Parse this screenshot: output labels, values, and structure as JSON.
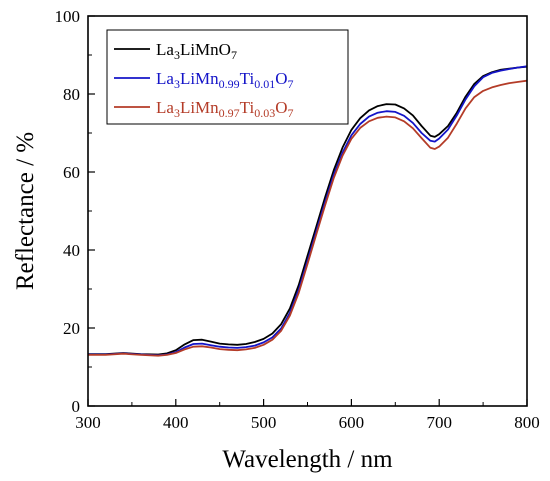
{
  "chart_data": {
    "type": "line",
    "title": "",
    "xlabel": "Wavelength / nm",
    "ylabel": "Reflectance / %",
    "xlim": [
      300,
      800
    ],
    "ylim": [
      0,
      100
    ],
    "x_ticks": [
      300,
      400,
      500,
      600,
      700,
      800
    ],
    "y_ticks": [
      0,
      20,
      40,
      60,
      80,
      100
    ],
    "grid": false,
    "legend_position": "top-left",
    "series": [
      {
        "name": "La3LiMnO7",
        "name_parts": [
          [
            "La",
            ""
          ],
          [
            "3",
            "sub"
          ],
          [
            "LiMnO",
            ""
          ],
          [
            "7",
            "sub"
          ]
        ],
        "color": "#000000",
        "x": [
          300,
          320,
          340,
          360,
          380,
          390,
          400,
          410,
          420,
          430,
          440,
          450,
          460,
          470,
          480,
          490,
          500,
          510,
          520,
          530,
          540,
          550,
          560,
          570,
          580,
          590,
          600,
          610,
          620,
          630,
          640,
          650,
          660,
          670,
          680,
          690,
          695,
          700,
          710,
          720,
          730,
          740,
          750,
          760,
          770,
          780,
          790,
          800
        ],
        "y": [
          13.3,
          13.3,
          13.6,
          13.3,
          13.2,
          13.5,
          14.3,
          15.8,
          16.9,
          17.0,
          16.5,
          16.0,
          15.8,
          15.7,
          15.9,
          16.4,
          17.2,
          18.6,
          21.0,
          25.0,
          31.0,
          38.5,
          46.0,
          53.5,
          60.5,
          66.3,
          70.8,
          73.8,
          75.8,
          76.9,
          77.4,
          77.3,
          76.3,
          74.5,
          71.8,
          69.3,
          69.0,
          69.7,
          71.8,
          75.2,
          79.3,
          82.6,
          84.6,
          85.6,
          86.2,
          86.5,
          86.8,
          87.0
        ]
      },
      {
        "name": "La3LiMn0.99Ti0.01O7",
        "name_parts": [
          [
            "La",
            ""
          ],
          [
            "3",
            "sub"
          ],
          [
            "LiMn",
            ""
          ],
          [
            "0.99",
            "sub"
          ],
          [
            "Ti",
            ""
          ],
          [
            "0.01",
            "sub"
          ],
          [
            "O",
            ""
          ],
          [
            "7",
            "sub"
          ]
        ],
        "color": "#1414c8",
        "x": [
          300,
          320,
          340,
          360,
          380,
          390,
          400,
          410,
          420,
          430,
          440,
          450,
          460,
          470,
          480,
          490,
          500,
          510,
          520,
          530,
          540,
          550,
          560,
          570,
          580,
          590,
          600,
          610,
          620,
          630,
          640,
          650,
          660,
          670,
          680,
          690,
          695,
          700,
          710,
          720,
          730,
          740,
          750,
          760,
          770,
          780,
          790,
          800
        ],
        "y": [
          13.2,
          13.2,
          13.5,
          13.2,
          13.0,
          13.2,
          13.8,
          15.0,
          15.9,
          16.0,
          15.6,
          15.2,
          15.0,
          14.9,
          15.1,
          15.5,
          16.3,
          17.6,
          19.9,
          23.9,
          29.8,
          37.2,
          44.8,
          52.3,
          59.3,
          65.0,
          69.4,
          72.3,
          74.2,
          75.2,
          75.6,
          75.4,
          74.4,
          72.6,
          70.0,
          68.0,
          67.8,
          68.6,
          70.9,
          74.5,
          78.6,
          82.0,
          84.3,
          85.4,
          86.0,
          86.4,
          86.8,
          87.1
        ]
      },
      {
        "name": "La3LiMn0.97Ti0.03O7",
        "name_parts": [
          [
            "La",
            ""
          ],
          [
            "3",
            "sub"
          ],
          [
            "LiMn",
            ""
          ],
          [
            "0.97",
            "sub"
          ],
          [
            "Ti",
            ""
          ],
          [
            "0.03",
            "sub"
          ],
          [
            "O",
            ""
          ],
          [
            "7",
            "sub"
          ]
        ],
        "color": "#b43c28",
        "x": [
          300,
          320,
          340,
          360,
          380,
          390,
          400,
          410,
          420,
          430,
          440,
          450,
          460,
          470,
          480,
          490,
          500,
          510,
          520,
          530,
          540,
          550,
          560,
          570,
          580,
          590,
          600,
          610,
          620,
          630,
          640,
          650,
          660,
          670,
          680,
          690,
          695,
          700,
          710,
          720,
          730,
          740,
          750,
          760,
          770,
          780,
          790,
          800
        ],
        "y": [
          13.1,
          13.1,
          13.4,
          13.1,
          12.9,
          13.1,
          13.6,
          14.5,
          15.2,
          15.3,
          15.0,
          14.6,
          14.4,
          14.3,
          14.5,
          14.9,
          15.7,
          17.0,
          19.3,
          23.2,
          29.0,
          36.4,
          44.0,
          51.5,
          58.5,
          64.2,
          68.5,
          71.3,
          73.0,
          73.9,
          74.2,
          74.0,
          73.0,
          71.2,
          68.7,
          66.2,
          65.9,
          66.5,
          68.8,
          72.4,
          76.3,
          79.2,
          80.8,
          81.7,
          82.3,
          82.8,
          83.1,
          83.4
        ]
      }
    ]
  }
}
